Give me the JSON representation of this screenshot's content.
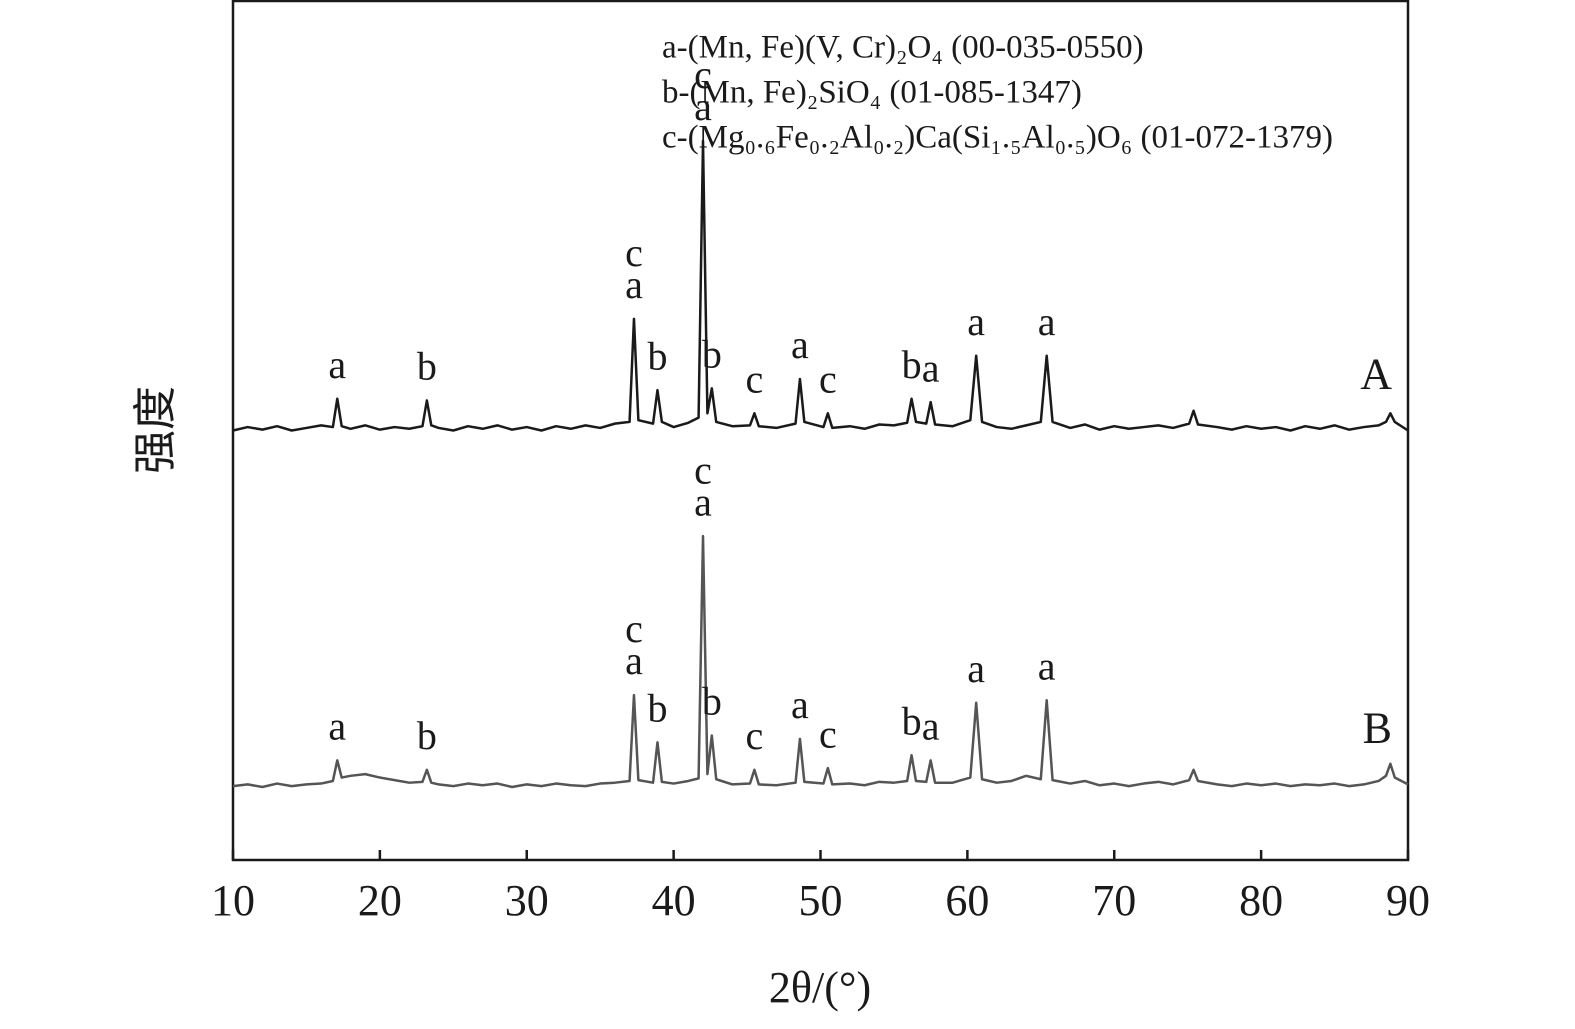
{
  "chart_data": {
    "type": "line",
    "xlabel": "2θ/(°)",
    "ylabel": "强度",
    "legend_texts": [
      "a-(Mn, Fe)(V, Cr)₂O₄ (00-035-0550)",
      "b-(Mn, Fe)₂SiO₄ (01-085-1347)",
      "c-(Mg₀.₆Fe₀.₂Al₀.₂)Ca(Si₁.₅Al₀.₅)O₆ (01-072-1379)"
    ],
    "xlim": [
      10,
      90
    ],
    "xticks": [
      10,
      20,
      30,
      40,
      50,
      60,
      70,
      80,
      90
    ],
    "ylim": [
      0,
      100
    ],
    "x": [
      10,
      11,
      12,
      13,
      14,
      15,
      16,
      16.8,
      17.1,
      17.4,
      18,
      19,
      20,
      21,
      22,
      22.9,
      23.2,
      23.5,
      24,
      25,
      26,
      27,
      28,
      29,
      30,
      31,
      32,
      33,
      34,
      35,
      36,
      37.0,
      37.3,
      37.6,
      38.6,
      38.9,
      39.2,
      40,
      41,
      41.7,
      42.0,
      42.3,
      42.6,
      42.9,
      44,
      45.2,
      45.5,
      45.8,
      47,
      48.3,
      48.6,
      48.9,
      50.2,
      50.5,
      50.8,
      52,
      53,
      54,
      55,
      55.9,
      56.2,
      56.5,
      57.2,
      57.5,
      57.8,
      59,
      60.2,
      60.6,
      61.0,
      62,
      63,
      64,
      65.0,
      65.4,
      65.8,
      67,
      68,
      69,
      70,
      71,
      72,
      73,
      74,
      75.1,
      75.4,
      75.7,
      77,
      78,
      79,
      80,
      81,
      82,
      83,
      84,
      85,
      86,
      87,
      88,
      88.5,
      88.8,
      89.1,
      90
    ],
    "series": [
      {
        "name": "A",
        "color": "#1a1a1a",
        "values": [
          50.0,
          50.4,
          50.1,
          50.5,
          50.0,
          50.3,
          50.6,
          50.4,
          53.7,
          50.5,
          50.2,
          50.6,
          50.1,
          50.4,
          50.2,
          50.5,
          53.5,
          50.6,
          50.3,
          50.0,
          50.5,
          50.2,
          50.6,
          50.1,
          50.4,
          50.0,
          50.5,
          50.2,
          50.6,
          50.3,
          50.8,
          51.0,
          63.0,
          51.2,
          50.8,
          54.7,
          51.0,
          50.4,
          50.9,
          51.5,
          83.7,
          52.0,
          54.9,
          51.0,
          50.5,
          50.6,
          52.0,
          50.5,
          50.3,
          50.8,
          56.0,
          51.0,
          50.4,
          52.0,
          50.3,
          50.5,
          50.2,
          50.7,
          50.6,
          50.9,
          53.7,
          51.0,
          50.8,
          53.3,
          50.7,
          50.5,
          51.2,
          58.7,
          51.0,
          50.4,
          50.2,
          50.6,
          51.0,
          58.7,
          51.0,
          50.3,
          50.7,
          50.1,
          50.5,
          50.2,
          50.4,
          50.6,
          50.3,
          50.8,
          52.3,
          50.7,
          50.4,
          50.1,
          50.5,
          50.2,
          50.4,
          50.0,
          50.5,
          50.2,
          50.6,
          50.1,
          50.4,
          50.6,
          51.0,
          52.0,
          51.0,
          50.0
        ],
        "peak_labels": [
          {
            "x": 17.1,
            "text": [
              "a"
            ]
          },
          {
            "x": 23.2,
            "text": [
              "b"
            ]
          },
          {
            "x": 37.3,
            "text": [
              "c",
              "a"
            ]
          },
          {
            "x": 38.9,
            "text": [
              "b"
            ]
          },
          {
            "x": 42.0,
            "text": [
              "c",
              "a"
            ]
          },
          {
            "x": 42.6,
            "text": [
              "b"
            ]
          },
          {
            "x": 45.5,
            "text": [
              "c"
            ]
          },
          {
            "x": 48.6,
            "text": [
              "a"
            ]
          },
          {
            "x": 50.5,
            "text": [
              "c"
            ]
          },
          {
            "x": 56.2,
            "text": [
              "b"
            ]
          },
          {
            "x": 57.5,
            "text": [
              "a"
            ]
          },
          {
            "x": 60.6,
            "text": [
              "a"
            ]
          },
          {
            "x": 65.4,
            "text": [
              "a"
            ]
          }
        ]
      },
      {
        "name": "B",
        "color": "#555555",
        "values": [
          8.6,
          8.8,
          8.5,
          8.9,
          8.6,
          8.8,
          8.9,
          9.2,
          11.6,
          9.6,
          9.8,
          10.0,
          9.6,
          9.3,
          9.0,
          9.1,
          10.5,
          9.0,
          8.8,
          8.6,
          8.9,
          8.7,
          8.9,
          8.5,
          8.8,
          8.6,
          8.9,
          8.7,
          8.6,
          8.9,
          9.0,
          9.2,
          19.2,
          9.3,
          9.0,
          13.7,
          9.1,
          8.9,
          9.2,
          9.5,
          37.7,
          10.0,
          14.5,
          9.4,
          8.8,
          8.9,
          10.5,
          8.8,
          8.7,
          9.0,
          14.1,
          9.1,
          8.9,
          10.7,
          8.8,
          8.9,
          8.7,
          9.1,
          9.0,
          9.2,
          12.2,
          9.2,
          9.1,
          11.6,
          9.0,
          9.0,
          9.6,
          18.3,
          9.4,
          9.0,
          9.2,
          9.8,
          9.4,
          18.6,
          9.3,
          8.9,
          9.2,
          8.7,
          8.9,
          8.6,
          8.9,
          9.1,
          8.8,
          9.3,
          10.5,
          9.2,
          8.8,
          8.6,
          8.9,
          8.7,
          8.9,
          8.6,
          8.8,
          8.7,
          8.9,
          8.6,
          8.8,
          9.2,
          9.8,
          11.2,
          9.6,
          8.8
        ],
        "peak_labels": [
          {
            "x": 17.1,
            "text": [
              "a"
            ]
          },
          {
            "x": 23.2,
            "text": [
              "b"
            ]
          },
          {
            "x": 37.3,
            "text": [
              "c",
              "a"
            ]
          },
          {
            "x": 38.9,
            "text": [
              "b"
            ]
          },
          {
            "x": 42.0,
            "text": [
              "c",
              "a"
            ]
          },
          {
            "x": 42.6,
            "text": [
              "b"
            ]
          },
          {
            "x": 45.5,
            "text": [
              "c"
            ]
          },
          {
            "x": 48.6,
            "text": [
              "a"
            ]
          },
          {
            "x": 50.5,
            "text": [
              "c"
            ]
          },
          {
            "x": 56.2,
            "text": [
              "b"
            ]
          },
          {
            "x": 57.5,
            "text": [
              "a"
            ]
          },
          {
            "x": 60.6,
            "text": [
              "a"
            ]
          },
          {
            "x": 65.4,
            "text": [
              "a"
            ]
          }
        ]
      }
    ]
  }
}
